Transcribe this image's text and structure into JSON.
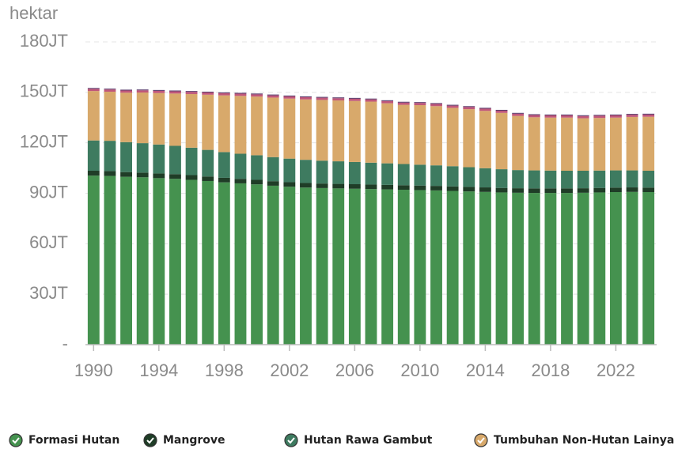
{
  "chart_data": {
    "type": "stacked_bar",
    "y_label": "hektar",
    "x": [
      1990,
      1991,
      1992,
      1993,
      1994,
      1995,
      1996,
      1997,
      1998,
      1999,
      2000,
      2001,
      2002,
      2003,
      2004,
      2005,
      2006,
      2007,
      2008,
      2009,
      2010,
      2011,
      2012,
      2013,
      2014,
      2015,
      2016,
      2017,
      2018,
      2019,
      2020,
      2021,
      2022,
      2023,
      2024
    ],
    "xlim": [
      1989.5,
      2024.5
    ],
    "xticks": [
      1990,
      1994,
      1998,
      2002,
      2006,
      2010,
      2014,
      2018,
      2022
    ],
    "ylim": [
      0,
      180000000
    ],
    "yticks": [
      {
        "value": 0,
        "label": "-"
      },
      {
        "value": 30000000,
        "label": "30JT"
      },
      {
        "value": 60000000,
        "label": "60JT"
      },
      {
        "value": 90000000,
        "label": "90JT"
      },
      {
        "value": 120000000,
        "label": "120JT"
      },
      {
        "value": 150000000,
        "label": "150JT"
      },
      {
        "value": 180000000,
        "label": "180JT"
      }
    ],
    "grid": true,
    "series": [
      {
        "name": "Formasi Hutan",
        "color": "#45924f",
        "values": [
          100500000,
          100300000,
          99800000,
          99500000,
          99000000,
          98600000,
          98000000,
          97300000,
          96500000,
          95900000,
          95300000,
          94500000,
          93900000,
          93400000,
          93100000,
          92900000,
          92700000,
          92500000,
          92300000,
          92100000,
          91900000,
          91700000,
          91400000,
          91100000,
          90800000,
          90500000,
          90300000,
          90200000,
          90200000,
          90200000,
          90300000,
          90500000,
          90700000,
          90800000,
          90700000
        ]
      },
      {
        "name": "Mangrove",
        "color": "#1f3d27",
        "values": [
          2900000,
          2900000,
          2800000,
          2800000,
          2800000,
          2800000,
          2800000,
          2700000,
          2700000,
          2700000,
          2700000,
          2700000,
          2700000,
          2700000,
          2700000,
          2700000,
          2700000,
          2700000,
          2700000,
          2700000,
          2700000,
          2700000,
          2700000,
          2700000,
          2700000,
          2700000,
          2700000,
          2700000,
          2700000,
          2700000,
          2700000,
          2700000,
          2700000,
          2700000,
          2700000
        ]
      },
      {
        "name": "Hutan Rawa Gambut",
        "color": "#3e7b60",
        "values": [
          18000000,
          18000000,
          17800000,
          17500000,
          17200000,
          16800000,
          16300000,
          15800000,
          15300000,
          14900000,
          14600000,
          14300000,
          14000000,
          13800000,
          13600000,
          13400000,
          13200000,
          13000000,
          12800000,
          12600000,
          12400000,
          12200000,
          12000000,
          11700000,
          11400000,
          11100000,
          10800000,
          10700000,
          10600000,
          10500000,
          10400000,
          10300000,
          10200000,
          10100000,
          10000000
        ]
      },
      {
        "name": "Tumbuhan Non-Hutan Lainya",
        "color": "#d8a96b",
        "values": [
          29400000,
          29200000,
          29400000,
          30100000,
          30600000,
          31100000,
          31900000,
          32800000,
          33700000,
          34400000,
          34900000,
          35400000,
          35700000,
          35900000,
          36100000,
          36200000,
          36300000,
          36300000,
          35700000,
          35200000,
          35400000,
          35200000,
          34700000,
          34500000,
          34100000,
          33500000,
          32200000,
          31600000,
          31500000,
          31600000,
          31200000,
          31300000,
          31400000,
          31800000,
          32100000
        ]
      },
      {
        "color": "#c0577a",
        "values": [
          1300000,
          1300000,
          1300000,
          1300000,
          1300000,
          1300000,
          1300000,
          1300000,
          1300000,
          1300000,
          1300000,
          1300000,
          1300000,
          1300000,
          1300000,
          1300000,
          1300000,
          1300000,
          1300000,
          1300000,
          1300000,
          1300000,
          1300000,
          1300000,
          1300000,
          1300000,
          1300000,
          1300000,
          1300000,
          1300000,
          1300000,
          1300000,
          1300000,
          1300000,
          1300000
        ]
      },
      {
        "color": "#5b3b6b",
        "values": [
          500000,
          500000,
          500000,
          500000,
          500000,
          500000,
          500000,
          500000,
          500000,
          500000,
          500000,
          500000,
          500000,
          500000,
          500000,
          500000,
          500000,
          500000,
          500000,
          500000,
          500000,
          500000,
          500000,
          500000,
          500000,
          500000,
          500000,
          500000,
          500000,
          500000,
          500000,
          500000,
          500000,
          500000,
          500000
        ]
      }
    ]
  }
}
